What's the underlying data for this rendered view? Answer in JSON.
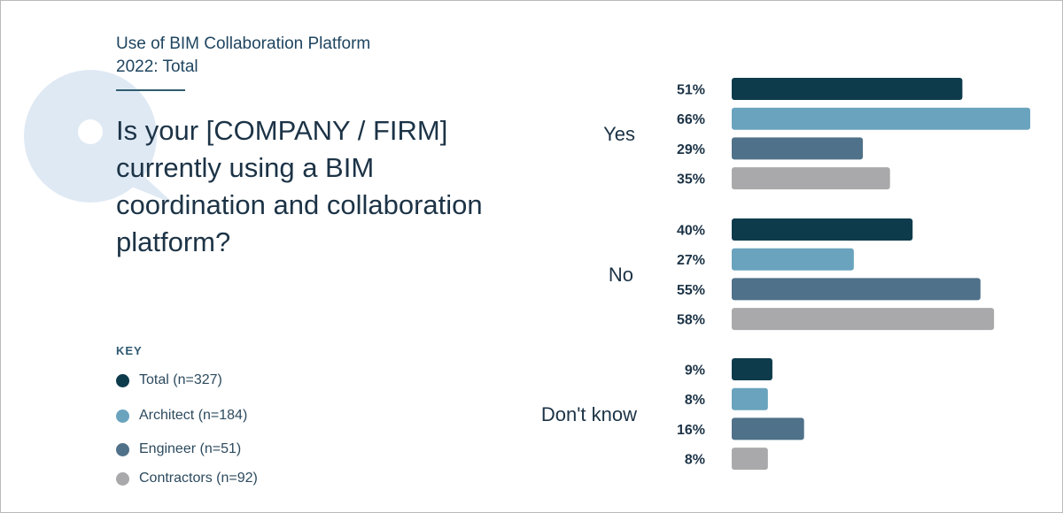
{
  "header": {
    "kicker": "Use of BIM Collaboration Platform 2022: Total",
    "question": "Is your [COMPANY / FIRM] currently using a BIM coordination and collaboration platform?"
  },
  "key": {
    "title": "KEY",
    "items": [
      {
        "label": "Total (n=327)",
        "color": "#0e3b4c"
      },
      {
        "label": "Architect (n=184)",
        "color": "#6aa3bd"
      },
      {
        "label": "Engineer (n=51)",
        "color": "#4f7189"
      },
      {
        "label": "Contractors (n=92)",
        "color": "#a9a9ab"
      }
    ]
  },
  "chart_data": {
    "type": "bar",
    "orientation": "horizontal",
    "title": "Is your [COMPANY / FIRM] currently using a BIM coordination and collaboration platform?",
    "categories": [
      "Yes",
      "No",
      "Don't know"
    ],
    "value_suffix": "%",
    "xlim": [
      0,
      66
    ],
    "grid": false,
    "legend": "bottom-left",
    "series": [
      {
        "name": "Total (n=327)",
        "color": "#0e3b4c",
        "values": [
          51,
          40,
          9
        ]
      },
      {
        "name": "Architect (n=184)",
        "color": "#6aa3bd",
        "values": [
          66,
          27,
          8
        ]
      },
      {
        "name": "Engineer (n=51)",
        "color": "#4f7189",
        "values": [
          29,
          55,
          16
        ]
      },
      {
        "name": "Contractors (n=92)",
        "color": "#a9a9ab",
        "values": [
          35,
          58,
          8
        ]
      }
    ]
  }
}
